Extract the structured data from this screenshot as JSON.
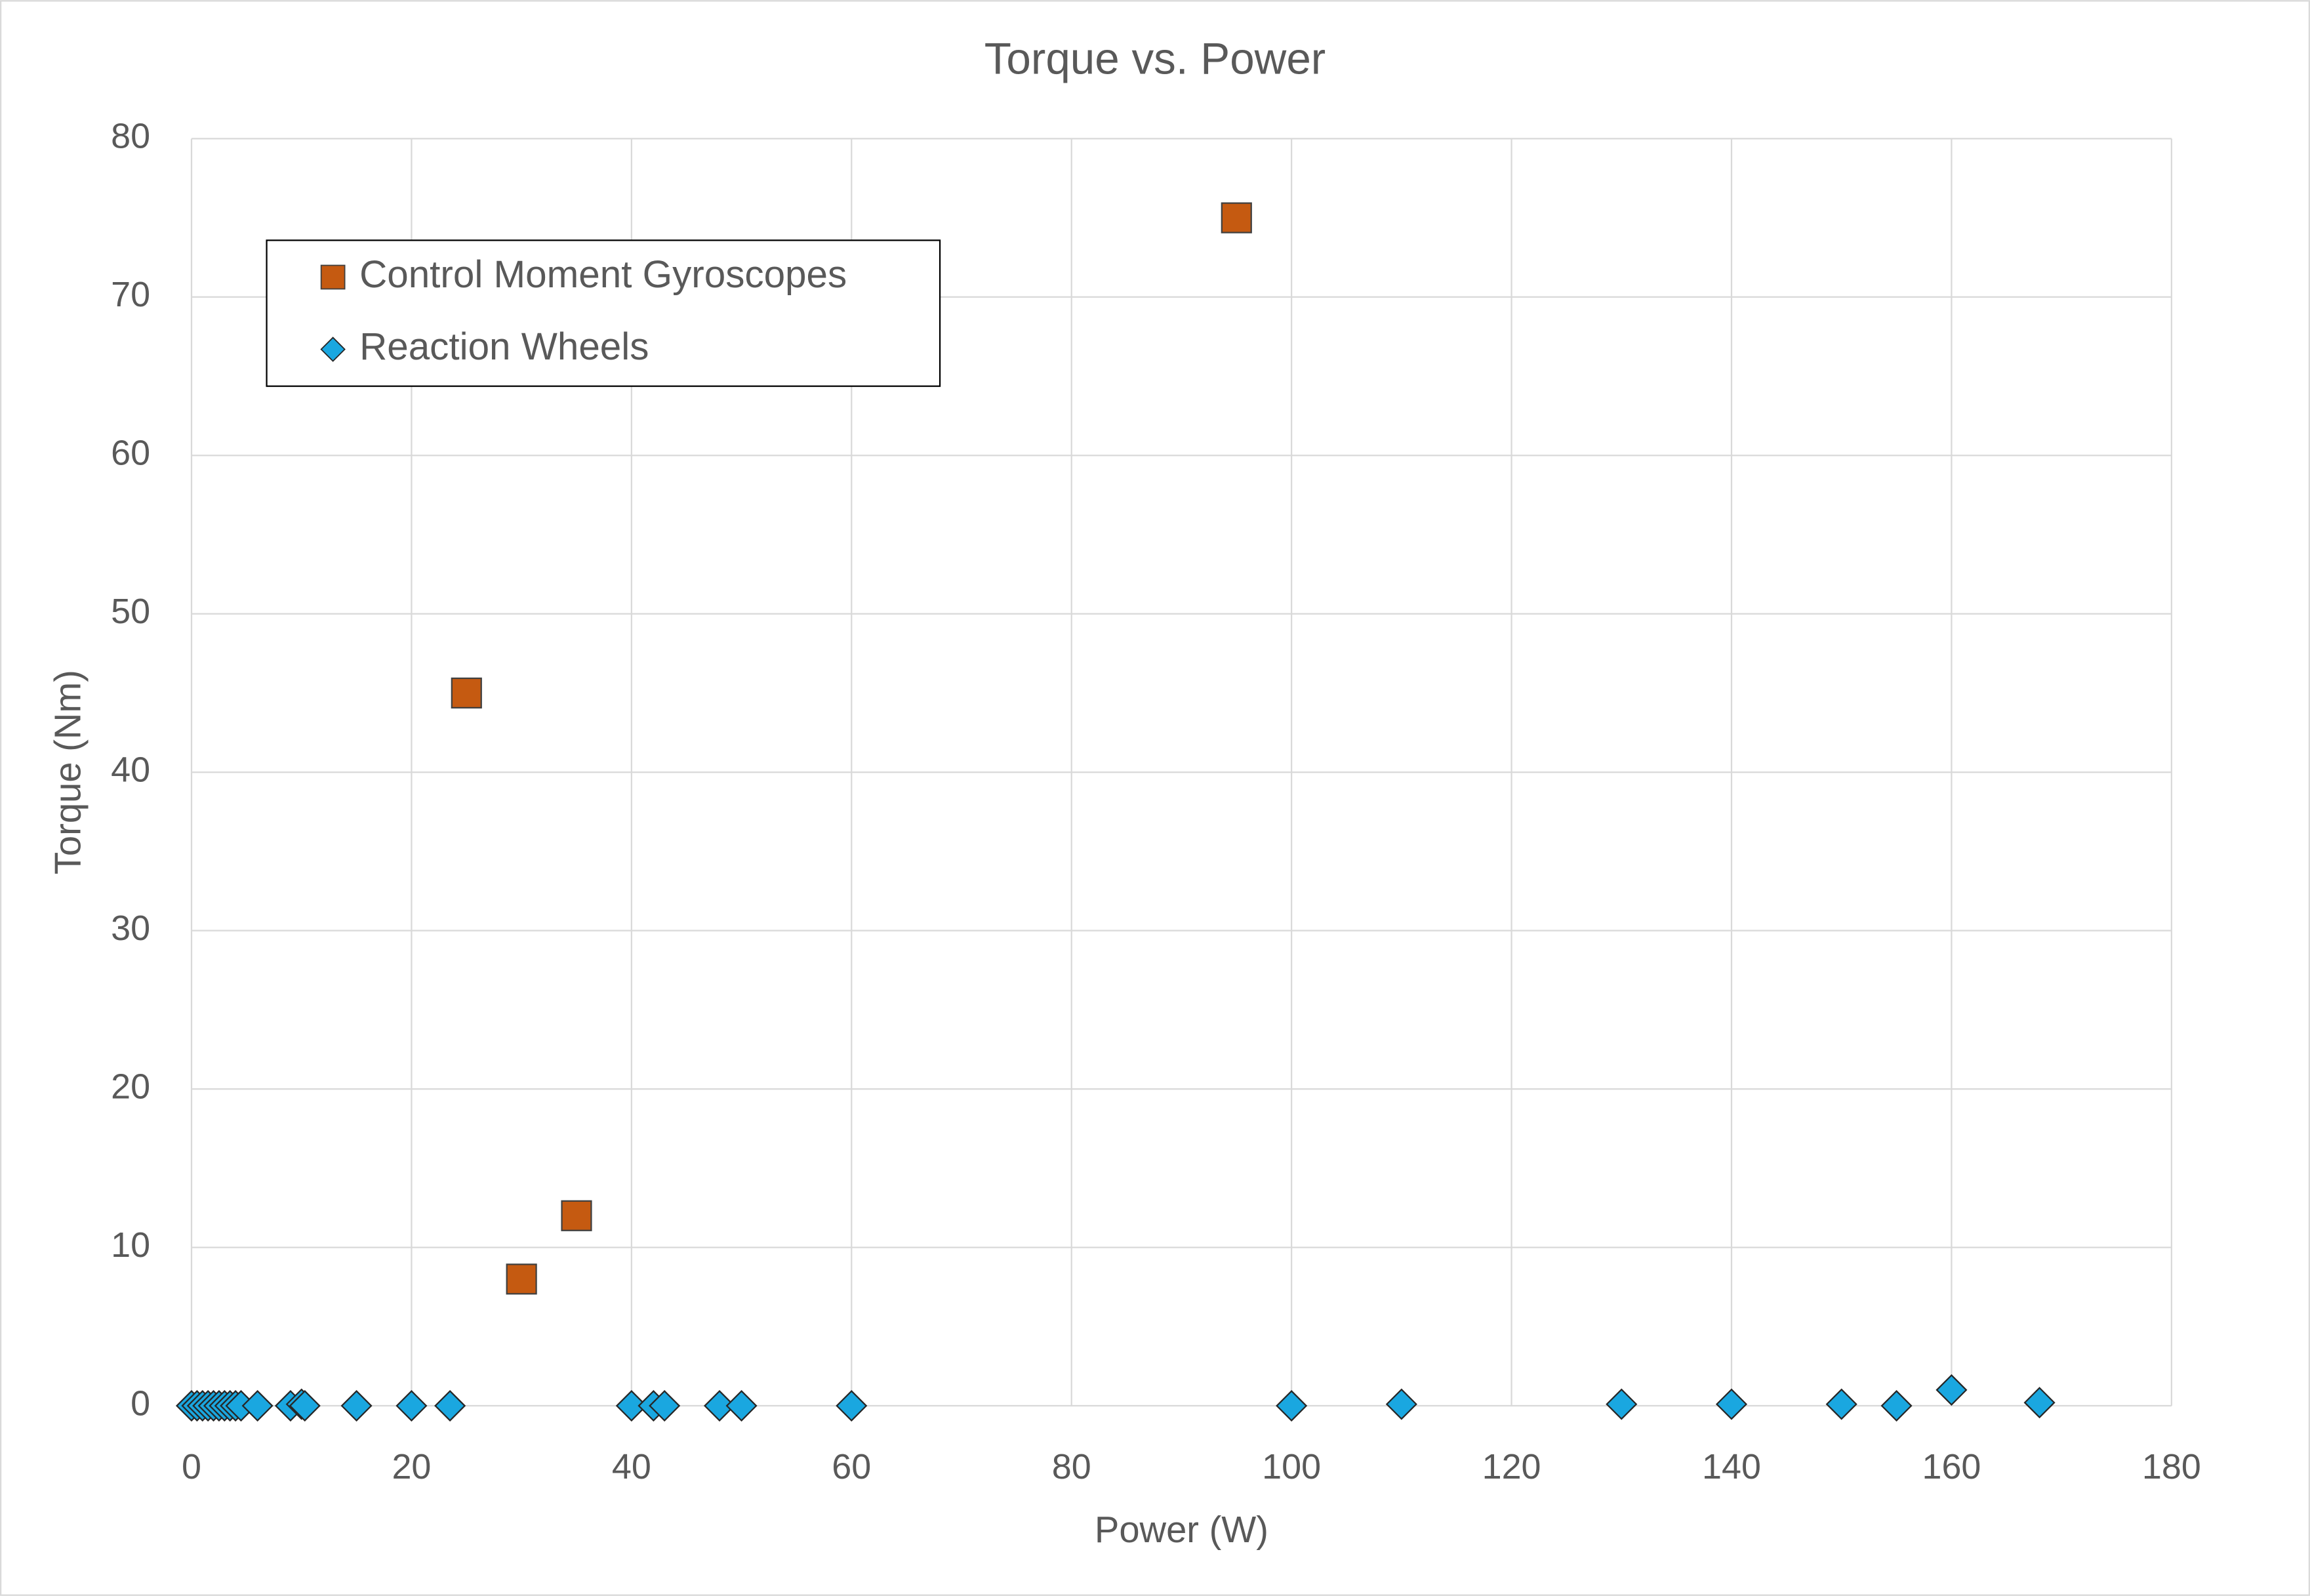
{
  "chart_data": {
    "type": "scatter",
    "title": "Torque vs. Power",
    "x_label": "Power (W)",
    "y_label": "Torque (Nm)",
    "xlim": [
      0,
      180
    ],
    "xticks": [
      0,
      20,
      40,
      60,
      80,
      100,
      120,
      140,
      160,
      180
    ],
    "ylim": [
      0,
      80
    ],
    "yticks": [
      0,
      10,
      20,
      30,
      40,
      50,
      60,
      70,
      80
    ],
    "grid": true,
    "legend": "upper left",
    "series": [
      {
        "name": "Control Moment Gyroscopes",
        "color": "#c55a11",
        "marker": "square",
        "x": [
          25,
          30,
          35,
          95
        ],
        "values": [
          45,
          8,
          12,
          75
        ]
      },
      {
        "name": "Reaction Wheels",
        "color": "#1aa7e0",
        "marker": "diamond",
        "x": [
          0,
          0.5,
          1,
          1.5,
          2,
          2.5,
          3,
          3.5,
          4,
          4.5,
          6,
          9,
          10,
          10.3,
          15,
          20,
          23.5,
          40,
          42,
          43,
          48,
          50,
          60,
          100,
          110,
          130,
          140,
          150,
          155,
          160,
          168
        ],
        "values": [
          0,
          0,
          0,
          0,
          0,
          0,
          0,
          0,
          0,
          0,
          0,
          0,
          0.1,
          0,
          0,
          0,
          0,
          0,
          0,
          0,
          0,
          0,
          0,
          0,
          0.1,
          0.1,
          0.1,
          0.1,
          0,
          1,
          0.2
        ]
      }
    ]
  }
}
